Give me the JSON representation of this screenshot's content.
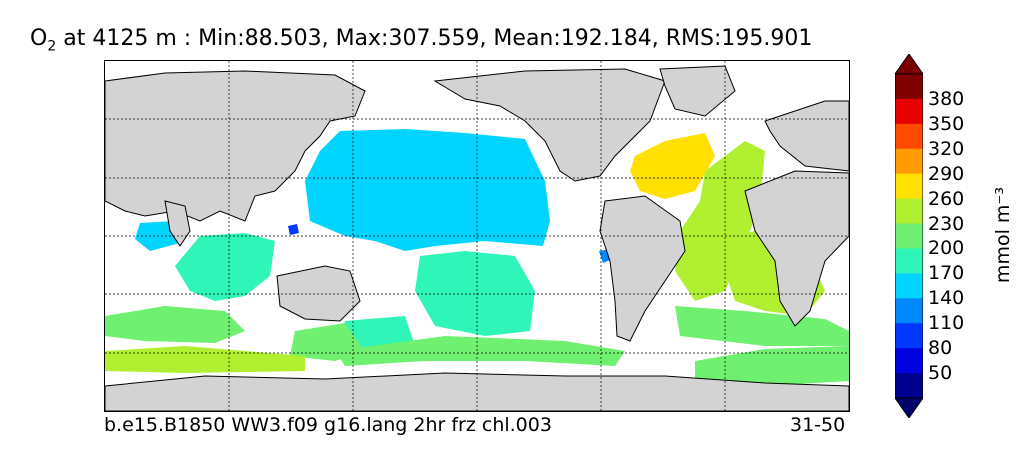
{
  "title": {
    "var_main": "O",
    "var_sub": "2",
    "rest": " at 4125 m : Min:88.503, Max:307.559, Mean:192.184, RMS:195.901"
  },
  "footer": {
    "case_name": "b.e15.B1850 WW3.f09 g16.lang 2hr frz chl.003",
    "years": "31-50"
  },
  "colorbar": {
    "unit_label": "mmol m⁻³",
    "ticks": [
      "50",
      "80",
      "110",
      "140",
      "170",
      "200",
      "230",
      "260",
      "290",
      "320",
      "350",
      "380"
    ],
    "under_color": "#00006a",
    "over_color": "#7a0000",
    "colors": [
      "#00008e",
      "#0000e0",
      "#0038ff",
      "#0088ff",
      "#00d4ff",
      "#2ff5b8",
      "#6ff070",
      "#b0f030",
      "#ffe000",
      "#ff9a00",
      "#ff4a00",
      "#e60000",
      "#800000"
    ]
  },
  "map": {
    "land_color": "#d3d3d3",
    "missing_color": "#ffffff",
    "gridline_style": "dotted"
  }
}
